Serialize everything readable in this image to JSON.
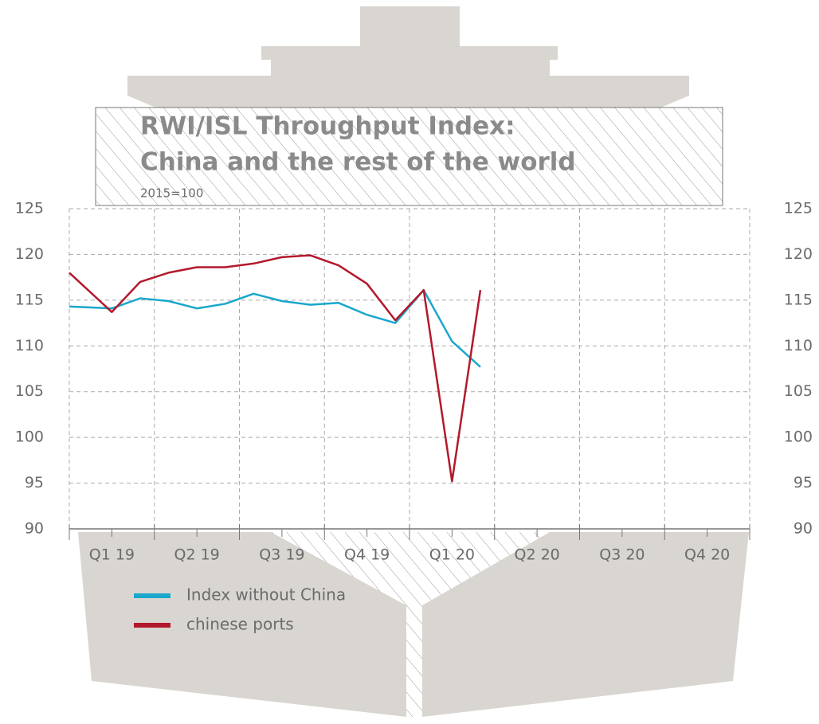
{
  "chart_data": {
    "type": "line",
    "title": "RWI/ISL Throughput Index:",
    "title_line2": "China and the rest of the world",
    "subtitle": "2015=100",
    "x": [
      0,
      1.5,
      2.5,
      3.5,
      4.5,
      5.5,
      6.5,
      7.5,
      8.5,
      9.5,
      10.5,
      11.5,
      12.5,
      13.5,
      14.5
    ],
    "xlim": [
      0,
      24
    ],
    "xticks": [
      {
        "value": 1.5,
        "label": "Q1 19"
      },
      {
        "value": 4.5,
        "label": "Q2 19"
      },
      {
        "value": 7.5,
        "label": "Q3 19"
      },
      {
        "value": 10.5,
        "label": "Q4 19"
      },
      {
        "value": 13.5,
        "label": "Q1 20"
      },
      {
        "value": 16.5,
        "label": "Q2 20"
      },
      {
        "value": 19.5,
        "label": "Q3 20"
      },
      {
        "value": 22.5,
        "label": "Q4 20"
      }
    ],
    "ylim": [
      90,
      125
    ],
    "yticks": [
      90,
      95,
      100,
      105,
      110,
      115,
      120,
      125
    ],
    "y2lim": [
      90,
      125
    ],
    "y2ticks": [
      90,
      95,
      100,
      105,
      110,
      115,
      120,
      125
    ],
    "grid": true,
    "series": [
      {
        "name": "Index without China",
        "color": "#1aa7cb",
        "values": [
          114.3,
          114.1,
          115.2,
          114.9,
          114.1,
          114.6,
          115.7,
          114.9,
          114.5,
          114.7,
          113.4,
          112.5,
          116.1,
          110.5,
          107.7
        ]
      },
      {
        "name": "chinese ports",
        "color": "#b3192c",
        "values": [
          118.0,
          113.7,
          117.0,
          118.0,
          118.6,
          118.6,
          119.0,
          119.7,
          119.9,
          118.8,
          116.8,
          112.8,
          116.1,
          95.2,
          116.1
        ]
      }
    ]
  }
}
